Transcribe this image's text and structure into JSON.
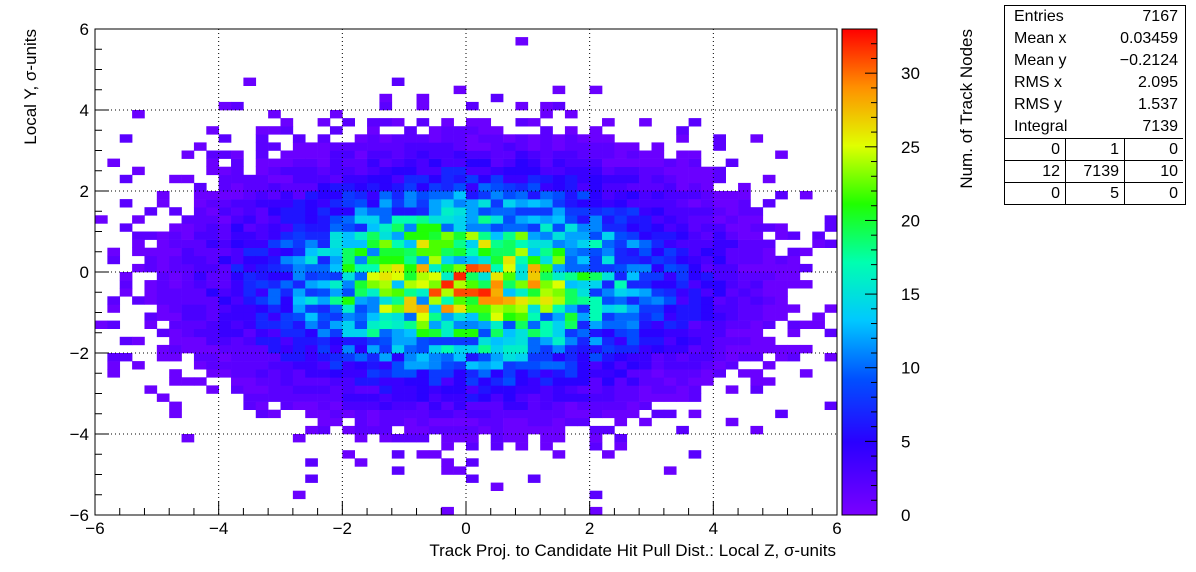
{
  "chart_data": {
    "type": "heatmap",
    "xlabel": "Track Proj. to Candidate Hit Pull Dist.: Local Z, σ-units",
    "ylabel": "Local Y, σ-units",
    "zlabel": "Num. of Track Nodes",
    "xlim": [
      -6,
      6
    ],
    "ylim": [
      -6,
      6
    ],
    "zlim": [
      0,
      33
    ],
    "xbins": 60,
    "ybins": 60,
    "grid": true,
    "x_ticks": [
      "−6",
      "−4",
      "−2",
      "0",
      "2",
      "4",
      "6"
    ],
    "y_ticks": [
      "−6",
      "−4",
      "−2",
      "0",
      "2",
      "4",
      "6"
    ],
    "z_ticks": [
      "0",
      "5",
      "10",
      "15",
      "20",
      "25",
      "30"
    ],
    "distribution": {
      "entries": 7167,
      "integral": 7139,
      "mean_x": 0.03459,
      "mean_y": -0.2124,
      "rms_x": 2.095,
      "rms_y": 1.537,
      "max_count": 32
    }
  },
  "stats": {
    "rows": [
      {
        "label": "Entries",
        "value": "7167"
      },
      {
        "label": "Mean x",
        "value": "0.03459"
      },
      {
        "label": "Mean y",
        "value": "−0.2124"
      },
      {
        "label": "RMS x",
        "value": "2.095"
      },
      {
        "label": "RMS y",
        "value": "1.537"
      },
      {
        "label": "Integral",
        "value": "7139"
      }
    ],
    "grid": [
      [
        "0",
        "1",
        "0"
      ],
      [
        "12",
        "7139",
        "10"
      ],
      [
        "0",
        "5",
        "0"
      ]
    ]
  }
}
